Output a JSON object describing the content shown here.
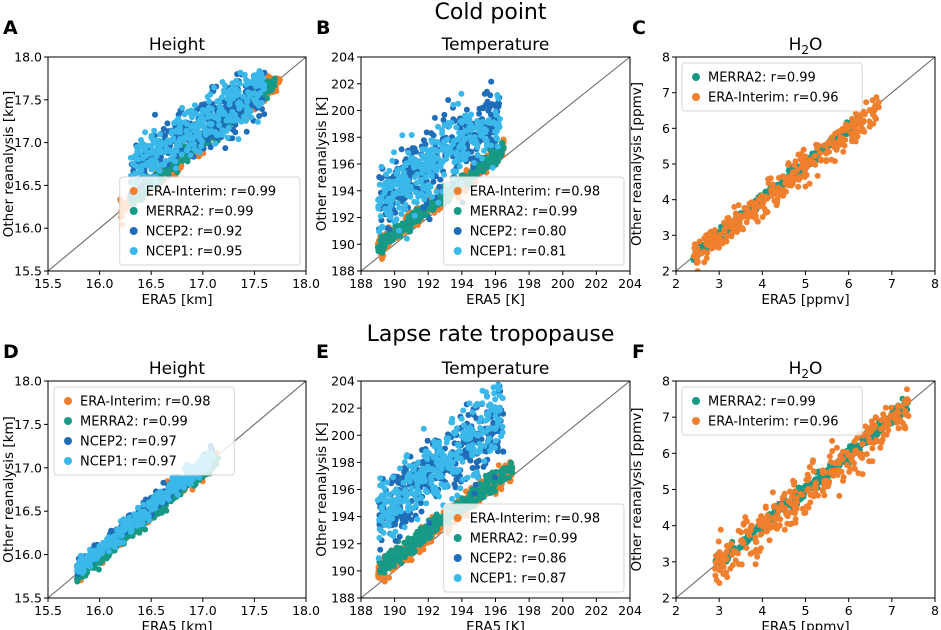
{
  "row_titles": [
    "Cold point",
    "Lapse rate tropopause"
  ],
  "colors": {
    "era_interim": "#f07f2e",
    "merra2": "#169a85",
    "ncep2": "#1f6db8",
    "ncep1": "#3bb8ea",
    "identity_line": "#6b6b6b"
  },
  "chart_data": [
    {
      "panel": "A",
      "row": "Cold point",
      "type": "scatter",
      "title": "Height",
      "title_sub": "",
      "xlabel": "ERA5 [km]",
      "ylabel": "Other reanalysis [km]",
      "xlim": [
        15.5,
        18.0
      ],
      "ylim": [
        15.5,
        18.0
      ],
      "xticks": [
        "15.5",
        "16.0",
        "16.5",
        "17.0",
        "17.5",
        "18.0"
      ],
      "yticks": [
        "15.5",
        "16.0",
        "16.5",
        "17.0",
        "17.5",
        "18.0"
      ],
      "legend_position": "lower-right",
      "series": [
        {
          "name": "ERA-Interim",
          "label": "ERA-Interim: r=0.99",
          "color_key": "era_interim",
          "x_range": [
            16.2,
            17.75
          ],
          "slope": 1.0,
          "intercept": 0.0,
          "spread": 0.05
        },
        {
          "name": "MERRA2",
          "label": "MERRA2: r=0.99",
          "color_key": "merra2",
          "x_range": [
            16.3,
            17.7
          ],
          "slope": 1.0,
          "intercept": 0.02,
          "spread": 0.05
        },
        {
          "name": "NCEP2",
          "label": "NCEP2: r=0.92",
          "color_key": "ncep2",
          "x_range": [
            16.3,
            17.6
          ],
          "slope": 0.75,
          "intercept": 4.45,
          "spread": 0.15
        },
        {
          "name": "NCEP1",
          "label": "NCEP1: r=0.95",
          "color_key": "ncep1",
          "x_range": [
            16.3,
            17.6
          ],
          "slope": 0.75,
          "intercept": 4.45,
          "spread": 0.16
        }
      ]
    },
    {
      "panel": "B",
      "row": "Cold point",
      "type": "scatter",
      "title": "Temperature",
      "title_sub": "",
      "xlabel": "ERA5 [K]",
      "ylabel": "Other reanalysis [K]",
      "xlim": [
        188,
        204
      ],
      "ylim": [
        188,
        204
      ],
      "xticks": [
        "188",
        "190",
        "192",
        "194",
        "196",
        "198",
        "200",
        "202",
        "204"
      ],
      "yticks": [
        "188",
        "190",
        "192",
        "194",
        "196",
        "198",
        "200",
        "202",
        "204"
      ],
      "legend_position": "lower-right",
      "series": [
        {
          "name": "ERA-Interim",
          "label": "ERA-Interim: r=0.98",
          "color_key": "era_interim",
          "x_range": [
            189.0,
            196.5
          ],
          "slope": 0.97,
          "intercept": 6.5,
          "spread": 0.35
        },
        {
          "name": "MERRA2",
          "label": "MERRA2: r=0.99",
          "color_key": "merra2",
          "x_range": [
            189.0,
            196.5
          ],
          "slope": 0.97,
          "intercept": 6.5,
          "spread": 0.3
        },
        {
          "name": "NCEP2",
          "label": "NCEP2: r=0.80",
          "color_key": "ncep2",
          "x_range": [
            189.0,
            196.3
          ],
          "slope": 0.85,
          "intercept": 32.5,
          "spread": 1.3
        },
        {
          "name": "NCEP1",
          "label": "NCEP1: r=0.81",
          "color_key": "ncep1",
          "x_range": [
            189.0,
            196.3
          ],
          "slope": 0.85,
          "intercept": 32.7,
          "spread": 1.3
        }
      ]
    },
    {
      "panel": "C",
      "row": "Cold point",
      "type": "scatter",
      "title": "H",
      "title_sub": "2",
      "title_tail": "O",
      "xlabel": "ERA5 [ppmv]",
      "ylabel": "Other reanalysis [ppmv]",
      "xlim": [
        2,
        8
      ],
      "ylim": [
        2,
        8
      ],
      "xticks": [
        "2",
        "3",
        "4",
        "5",
        "6",
        "7",
        "8"
      ],
      "yticks": [
        "2",
        "3",
        "4",
        "5",
        "6",
        "7",
        "8"
      ],
      "legend_position": "upper-left",
      "series": [
        {
          "name": "MERRA2",
          "label": "MERRA2: r=0.99",
          "color_key": "merra2",
          "x_range": [
            2.4,
            6.2
          ],
          "slope": 1.0,
          "intercept": 0.0,
          "spread": 0.08
        },
        {
          "name": "ERA-Interim",
          "label": "ERA-Interim: r=0.96",
          "color_key": "era_interim",
          "x_range": [
            2.4,
            6.7
          ],
          "slope": 0.97,
          "intercept": 0.05,
          "spread": 0.22
        }
      ]
    },
    {
      "panel": "D",
      "row": "Lapse rate tropopause",
      "type": "scatter",
      "title": "Height",
      "title_sub": "",
      "xlabel": "ERA5 [km]",
      "ylabel": "Other reanalysis [km]",
      "xlim": [
        15.5,
        18.0
      ],
      "ylim": [
        15.5,
        18.0
      ],
      "xticks": [
        "15.5",
        "16.0",
        "16.5",
        "17.0",
        "17.5",
        "18.0"
      ],
      "yticks": [
        "15.5",
        "16.0",
        "16.5",
        "17.0",
        "17.5",
        "18.0"
      ],
      "legend_position": "upper-left",
      "series": [
        {
          "name": "ERA-Interim",
          "label": "ERA-Interim: r=0.98",
          "color_key": "era_interim",
          "x_range": [
            15.78,
            17.15
          ],
          "slope": 1.0,
          "intercept": 0.0,
          "spread": 0.05
        },
        {
          "name": "MERRA2",
          "label": "MERRA2: r=0.99",
          "color_key": "merra2",
          "x_range": [
            15.78,
            17.15
          ],
          "slope": 1.0,
          "intercept": -0.04,
          "spread": 0.04
        },
        {
          "name": "NCEP2",
          "label": "NCEP2: r=0.97",
          "color_key": "ncep2",
          "x_range": [
            15.78,
            17.1
          ],
          "slope": 1.0,
          "intercept": 0.06,
          "spread": 0.05
        },
        {
          "name": "NCEP1",
          "label": "NCEP1: r=0.97",
          "color_key": "ncep1",
          "x_range": [
            15.78,
            17.1
          ],
          "slope": 1.0,
          "intercept": 0.05,
          "spread": 0.05
        }
      ]
    },
    {
      "panel": "E",
      "row": "Lapse rate tropopause",
      "type": "scatter",
      "title": "Temperature",
      "title_sub": "",
      "xlabel": "ERA5 [K]",
      "ylabel": "Other reanalysis [K]",
      "xlim": [
        188,
        204
      ],
      "ylim": [
        188,
        204
      ],
      "xticks": [
        "188",
        "190",
        "192",
        "194",
        "196",
        "198",
        "200",
        "202",
        "204"
      ],
      "yticks": [
        "188",
        "190",
        "192",
        "194",
        "196",
        "198",
        "200",
        "202",
        "204"
      ],
      "legend_position": "lower-right",
      "series": [
        {
          "name": "ERA-Interim",
          "label": "ERA-Interim: r=0.98",
          "color_key": "era_interim",
          "x_range": [
            189.0,
            197.0
          ],
          "slope": 0.95,
          "intercept": 10.3,
          "spread": 0.4
        },
        {
          "name": "MERRA2",
          "label": "MERRA2: r=0.99",
          "color_key": "merra2",
          "x_range": [
            189.0,
            197.0
          ],
          "slope": 0.95,
          "intercept": 10.5,
          "spread": 0.35
        },
        {
          "name": "NCEP2",
          "label": "NCEP2: r=0.86",
          "color_key": "ncep2",
          "x_range": [
            189.0,
            196.5
          ],
          "slope": 0.95,
          "intercept": 14.5,
          "spread": 1.3
        },
        {
          "name": "NCEP1",
          "label": "NCEP1: r=0.87",
          "color_key": "ncep1",
          "x_range": [
            189.0,
            196.5
          ],
          "slope": 0.95,
          "intercept": 14.7,
          "spread": 1.3
        }
      ]
    },
    {
      "panel": "F",
      "row": "Lapse rate tropopause",
      "type": "scatter",
      "title": "H",
      "title_sub": "2",
      "title_tail": "O",
      "xlabel": "ERA5 [ppmv]",
      "ylabel": "Other reanalysis [ppmv]",
      "xlim": [
        2,
        8
      ],
      "ylim": [
        2,
        8
      ],
      "xticks": [
        "2",
        "3",
        "4",
        "5",
        "6",
        "7",
        "8"
      ],
      "yticks": [
        "2",
        "3",
        "4",
        "5",
        "6",
        "7",
        "8"
      ],
      "legend_position": "upper-left",
      "series": [
        {
          "name": "MERRA2",
          "label": "MERRA2: r=0.99",
          "color_key": "merra2",
          "x_range": [
            2.9,
            7.4
          ],
          "slope": 1.0,
          "intercept": 0.0,
          "spread": 0.1
        },
        {
          "name": "ERA-Interim",
          "label": "ERA-Interim: r=0.96",
          "color_key": "era_interim",
          "x_range": [
            2.9,
            7.4
          ],
          "slope": 0.97,
          "intercept": 0.05,
          "spread": 0.3
        }
      ]
    }
  ]
}
